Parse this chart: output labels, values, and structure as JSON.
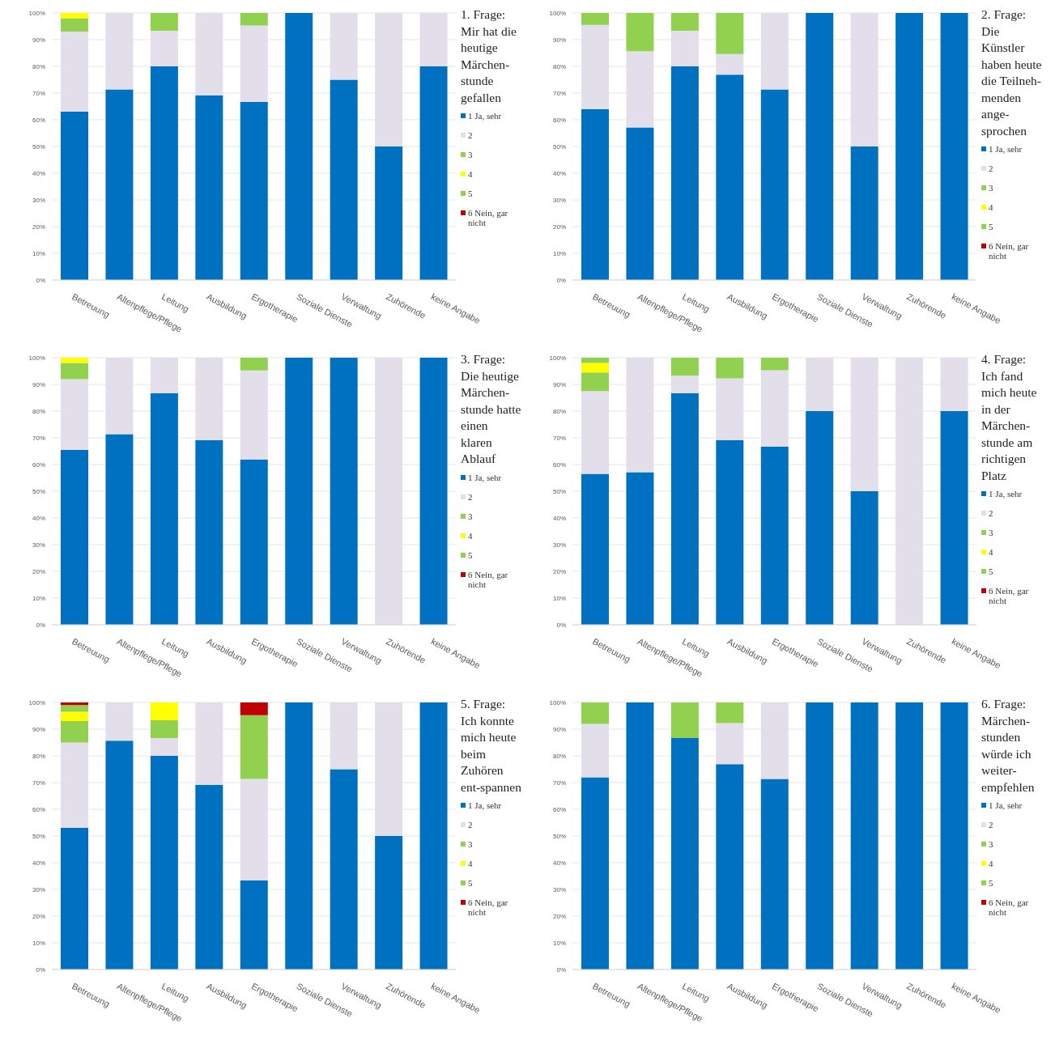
{
  "chart_data": [
    {
      "type": "bar",
      "stacked": true,
      "title": "1. Frage: Mir hat die heutige Märchen-stunde gefallen",
      "legend": "right",
      "grid": "y",
      "ylim": [
        0,
        100
      ],
      "yticks": [
        {
          "value": 0,
          "label": "0%"
        },
        {
          "value": 10,
          "label": "10%"
        },
        {
          "value": 20,
          "label": "20%"
        },
        {
          "value": 30,
          "label": "30%"
        },
        {
          "value": 40,
          "label": "40%"
        },
        {
          "value": 50,
          "label": "50%"
        },
        {
          "value": 60,
          "label": "60%"
        },
        {
          "value": 70,
          "label": "70%"
        },
        {
          "value": 80,
          "label": "80%"
        },
        {
          "value": 90,
          "label": "90%"
        },
        {
          "value": 100,
          "label": "100%"
        }
      ],
      "categories": [
        "Betreuung",
        "Altenpflege/Pflege",
        "Leitung",
        "Ausbildung",
        "Ergotherapie",
        "Soziale Dienste",
        "Verwaltung",
        "Zuhörende",
        "keine Angabe"
      ],
      "series": [
        {
          "name": "1 Ja, sehr",
          "color": "#0070c0",
          "values": [
            63,
            71.4,
            80,
            69.2,
            66.7,
            100,
            75,
            50,
            80
          ]
        },
        {
          "name": "2",
          "color": "#e2dfea",
          "values": [
            30,
            28.6,
            13.3,
            30.8,
            28.6,
            0,
            25,
            50,
            20
          ]
        },
        {
          "name": "3",
          "color": "#92d050",
          "values": [
            5,
            0,
            6.7,
            0,
            4.7,
            0,
            0,
            0,
            0
          ]
        },
        {
          "name": "4",
          "color": "#ffff00",
          "values": [
            2,
            0,
            0,
            0,
            0,
            0,
            0,
            0,
            0
          ]
        },
        {
          "name": "5",
          "color": "#92d050",
          "values": [
            0,
            0,
            0,
            0,
            0,
            0,
            0,
            0,
            0
          ]
        },
        {
          "name": "6 Nein, gar nicht",
          "color": "#c00000",
          "values": [
            0,
            0,
            0,
            0,
            0,
            0,
            0,
            0,
            0
          ]
        }
      ]
    },
    {
      "type": "bar",
      "stacked": true,
      "title": "2. Frage: Die Künstler haben heute die Teilneh-menden ange-sprochen",
      "legend": "right",
      "grid": "y",
      "ylim": [
        0,
        100
      ],
      "yticks": [
        {
          "value": 0,
          "label": "0%"
        },
        {
          "value": 10,
          "label": "10%"
        },
        {
          "value": 20,
          "label": "20%"
        },
        {
          "value": 30,
          "label": "30%"
        },
        {
          "value": 40,
          "label": "40%"
        },
        {
          "value": 50,
          "label": "50%"
        },
        {
          "value": 60,
          "label": "60%"
        },
        {
          "value": 70,
          "label": "70%"
        },
        {
          "value": 80,
          "label": "80%"
        },
        {
          "value": 90,
          "label": "90%"
        },
        {
          "value": 100,
          "label": "100%"
        }
      ],
      "categories": [
        "Betreuung",
        "Altenpflege/Pflege",
        "Leitung",
        "Ausbildung",
        "Ergotherapie",
        "Soziale Dienste",
        "Verwaltung",
        "Zuhörende",
        "keine Angabe"
      ],
      "series": [
        {
          "name": "1 Ja, sehr",
          "color": "#0070c0",
          "values": [
            64,
            57.1,
            80,
            76.9,
            71.4,
            100,
            50,
            100,
            100
          ]
        },
        {
          "name": "2",
          "color": "#e2dfea",
          "values": [
            31.5,
            28.6,
            13.3,
            7.7,
            28.6,
            0,
            50,
            0,
            0
          ]
        },
        {
          "name": "3",
          "color": "#92d050",
          "values": [
            4.5,
            14.3,
            6.7,
            15.4,
            0,
            0,
            0,
            0,
            0
          ]
        },
        {
          "name": "4",
          "color": "#ffff00",
          "values": [
            0,
            0,
            0,
            0,
            0,
            0,
            0,
            0,
            0
          ]
        },
        {
          "name": "5",
          "color": "#92d050",
          "values": [
            0,
            0,
            0,
            0,
            0,
            0,
            0,
            0,
            0
          ]
        },
        {
          "name": "6 Nein, gar nicht",
          "color": "#c00000",
          "values": [
            0,
            0,
            0,
            0,
            0,
            0,
            0,
            0,
            0
          ]
        }
      ]
    },
    {
      "type": "bar",
      "stacked": true,
      "title": "3. Frage: Die heutige Märchen-stunde hatte einen klaren Ablauf",
      "legend": "right",
      "grid": "y",
      "ylim": [
        0,
        100
      ],
      "yticks": [
        {
          "value": 0,
          "label": "0%"
        },
        {
          "value": 10,
          "label": "10%"
        },
        {
          "value": 20,
          "label": "20%"
        },
        {
          "value": 30,
          "label": "30%"
        },
        {
          "value": 40,
          "label": "40%"
        },
        {
          "value": 50,
          "label": "50%"
        },
        {
          "value": 60,
          "label": "60%"
        },
        {
          "value": 70,
          "label": "70%"
        },
        {
          "value": 80,
          "label": "80%"
        },
        {
          "value": 90,
          "label": "90%"
        },
        {
          "value": 100,
          "label": "100%"
        }
      ],
      "categories": [
        "Betreuung",
        "Altenpflege/Pflege",
        "Leitung",
        "Ausbildung",
        "Ergotherapie",
        "Soziale Dienste",
        "Verwaltung",
        "Zuhörende",
        "keine Angabe"
      ],
      "series": [
        {
          "name": "1 Ja, sehr",
          "color": "#0070c0",
          "values": [
            65.5,
            71.4,
            86.7,
            69.2,
            61.9,
            100,
            100,
            0,
            100
          ]
        },
        {
          "name": "2",
          "color": "#e2dfea",
          "values": [
            26.5,
            28.6,
            13.3,
            30.8,
            33.3,
            0,
            0,
            100,
            0
          ]
        },
        {
          "name": "3",
          "color": "#92d050",
          "values": [
            6,
            0,
            0,
            0,
            4.8,
            0,
            0,
            0,
            0
          ]
        },
        {
          "name": "4",
          "color": "#ffff00",
          "values": [
            2,
            0,
            0,
            0,
            0,
            0,
            0,
            0,
            0
          ]
        },
        {
          "name": "5",
          "color": "#92d050",
          "values": [
            0,
            0,
            0,
            0,
            0,
            0,
            0,
            0,
            0
          ]
        },
        {
          "name": "6 Nein, gar nicht",
          "color": "#c00000",
          "values": [
            0,
            0,
            0,
            0,
            0,
            0,
            0,
            0,
            0
          ]
        }
      ]
    },
    {
      "type": "bar",
      "stacked": true,
      "title": "4. Frage: Ich fand mich heute in der Märchen-stunde am richtigen Platz",
      "legend": "right",
      "grid": "y",
      "ylim": [
        0,
        100
      ],
      "yticks": [
        {
          "value": 0,
          "label": "0%"
        },
        {
          "value": 10,
          "label": "10%"
        },
        {
          "value": 20,
          "label": "20%"
        },
        {
          "value": 30,
          "label": "30%"
        },
        {
          "value": 40,
          "label": "40%"
        },
        {
          "value": 50,
          "label": "50%"
        },
        {
          "value": 60,
          "label": "60%"
        },
        {
          "value": 70,
          "label": "70%"
        },
        {
          "value": 80,
          "label": "80%"
        },
        {
          "value": 90,
          "label": "90%"
        },
        {
          "value": 100,
          "label": "100%"
        }
      ],
      "categories": [
        "Betreuung",
        "Altenpflege/Pflege",
        "Leitung",
        "Ausbildung",
        "Ergotherapie",
        "Soziale Dienste",
        "Verwaltung",
        "Zuhörende",
        "keine Angabe"
      ],
      "series": [
        {
          "name": "1 Ja, sehr",
          "color": "#0070c0",
          "values": [
            56.5,
            57.1,
            86.7,
            69.2,
            66.7,
            80,
            50,
            0,
            80
          ]
        },
        {
          "name": "2",
          "color": "#e2dfea",
          "values": [
            31,
            42.9,
            6.6,
            23.1,
            28.6,
            20,
            50,
            100,
            20
          ]
        },
        {
          "name": "3",
          "color": "#92d050",
          "values": [
            7,
            0,
            6.7,
            7.7,
            4.7,
            0,
            0,
            0,
            0
          ]
        },
        {
          "name": "4",
          "color": "#ffff00",
          "values": [
            3.5,
            0,
            0,
            0,
            0,
            0,
            0,
            0,
            0
          ]
        },
        {
          "name": "5",
          "color": "#92d050",
          "values": [
            2,
            0,
            0,
            0,
            0,
            0,
            0,
            0,
            0
          ]
        },
        {
          "name": "6 Nein, gar nicht",
          "color": "#c00000",
          "values": [
            0,
            0,
            0,
            0,
            0,
            0,
            0,
            0,
            0
          ]
        }
      ]
    },
    {
      "type": "bar",
      "stacked": true,
      "title": "5. Frage: Ich konnte mich heute beim Zuhören ent-spannen",
      "legend": "right",
      "grid": "y",
      "ylim": [
        0,
        100
      ],
      "yticks": [
        {
          "value": 0,
          "label": "0%"
        },
        {
          "value": 10,
          "label": "10%"
        },
        {
          "value": 20,
          "label": "20%"
        },
        {
          "value": 30,
          "label": "30%"
        },
        {
          "value": 40,
          "label": "40%"
        },
        {
          "value": 50,
          "label": "50%"
        },
        {
          "value": 60,
          "label": "60%"
        },
        {
          "value": 70,
          "label": "70%"
        },
        {
          "value": 80,
          "label": "80%"
        },
        {
          "value": 90,
          "label": "90%"
        },
        {
          "value": 100,
          "label": "100%"
        }
      ],
      "categories": [
        "Betreuung",
        "Altenpflege/Pflege",
        "Leitung",
        "Ausbildung",
        "Ergotherapie",
        "Soziale Dienste",
        "Verwaltung",
        "Zuhörende",
        "keine Angabe"
      ],
      "series": [
        {
          "name": "1 Ja, sehr",
          "color": "#0070c0",
          "values": [
            53,
            85.7,
            80,
            69.2,
            33.3,
            100,
            75,
            50,
            100
          ]
        },
        {
          "name": "2",
          "color": "#e2dfea",
          "values": [
            32,
            14.3,
            6.7,
            30.8,
            38.1,
            0,
            25,
            50,
            0
          ]
        },
        {
          "name": "3",
          "color": "#92d050",
          "values": [
            8,
            0,
            6.6,
            0,
            23.8,
            0,
            0,
            0,
            0
          ]
        },
        {
          "name": "4",
          "color": "#ffff00",
          "values": [
            3.5,
            0,
            6.7,
            0,
            0,
            0,
            0,
            0,
            0
          ]
        },
        {
          "name": "5",
          "color": "#92d050",
          "values": [
            2.5,
            0,
            0,
            0,
            0,
            0,
            0,
            0,
            0
          ]
        },
        {
          "name": "6 Nein, gar nicht",
          "color": "#c00000",
          "values": [
            1,
            0,
            0,
            0,
            4.8,
            0,
            0,
            0,
            0
          ]
        }
      ]
    },
    {
      "type": "bar",
      "stacked": true,
      "title": "6. Frage: Märchen-stunden würde ich weiter-empfehlen",
      "legend": "right",
      "grid": "y",
      "ylim": [
        0,
        100
      ],
      "yticks": [
        {
          "value": 0,
          "label": "0%"
        },
        {
          "value": 10,
          "label": "10%"
        },
        {
          "value": 20,
          "label": "20%"
        },
        {
          "value": 30,
          "label": "30%"
        },
        {
          "value": 40,
          "label": "40%"
        },
        {
          "value": 50,
          "label": "50%"
        },
        {
          "value": 60,
          "label": "60%"
        },
        {
          "value": 70,
          "label": "70%"
        },
        {
          "value": 80,
          "label": "80%"
        },
        {
          "value": 90,
          "label": "90%"
        },
        {
          "value": 100,
          "label": "100%"
        }
      ],
      "categories": [
        "Betreuung",
        "Altenpflege/Pflege",
        "Leitung",
        "Ausbildung",
        "Ergotherapie",
        "Soziale Dienste",
        "Verwaltung",
        "Zuhörende",
        "keine Angabe"
      ],
      "series": [
        {
          "name": "1 Ja, sehr",
          "color": "#0070c0",
          "values": [
            72,
            100,
            86.7,
            76.9,
            71.4,
            100,
            100,
            100,
            100
          ]
        },
        {
          "name": "2",
          "color": "#e2dfea",
          "values": [
            20,
            0,
            0,
            15.4,
            28.6,
            0,
            0,
            0,
            0
          ]
        },
        {
          "name": "3",
          "color": "#92d050",
          "values": [
            8,
            0,
            13.3,
            7.7,
            0,
            0,
            0,
            0,
            0
          ]
        },
        {
          "name": "4",
          "color": "#ffff00",
          "values": [
            0,
            0,
            0,
            0,
            0,
            0,
            0,
            0,
            0
          ]
        },
        {
          "name": "5",
          "color": "#92d050",
          "values": [
            0,
            0,
            0,
            0,
            0,
            0,
            0,
            0,
            0
          ]
        },
        {
          "name": "6 Nein, gar nicht",
          "color": "#c00000",
          "values": [
            0,
            0,
            0,
            0,
            0,
            0,
            0,
            0,
            0
          ]
        }
      ]
    }
  ]
}
